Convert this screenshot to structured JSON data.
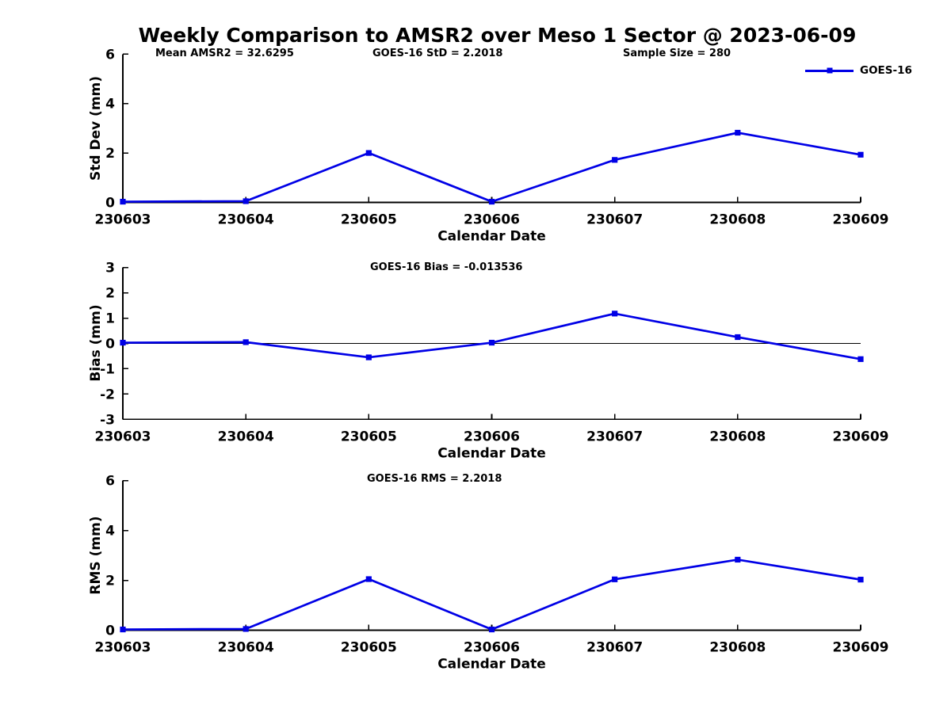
{
  "figure": {
    "title": "Weekly Comparison to AMSR2 over Meso 1 Sector @ 2023-06-09",
    "legend": {
      "label": "GOES-16",
      "position": "top-right"
    },
    "colors": {
      "line": "#0000e6",
      "axis": "#000000",
      "background": "#ffffff"
    }
  },
  "chart_data": [
    {
      "type": "line",
      "name": "std-dev",
      "ylabel": "Std Dev (mm)",
      "xlabel": "Calendar Date",
      "categories": [
        "230603",
        "230604",
        "230605",
        "230606",
        "230607",
        "230608",
        "230609"
      ],
      "yticks": [
        0,
        2,
        4,
        6
      ],
      "ylim": [
        0,
        6
      ],
      "grid": false,
      "zero_line": false,
      "legend": {
        "position": "top-right",
        "entries": [
          "GOES-16"
        ]
      },
      "series": [
        {
          "name": "GOES-16",
          "values": [
            0.03,
            0.05,
            2.0,
            0.03,
            1.72,
            2.82,
            1.93
          ]
        }
      ],
      "annotations": [
        "Mean AMSR2 = 32.6295",
        "GOES-16 StD = 2.2018",
        "Sample Size = 280"
      ]
    },
    {
      "type": "line",
      "name": "bias",
      "ylabel": "Bias (mm)",
      "xlabel": "Calendar Date",
      "categories": [
        "230603",
        "230604",
        "230605",
        "230606",
        "230607",
        "230608",
        "230609"
      ],
      "yticks": [
        -3,
        -2,
        -1,
        0,
        1,
        2,
        3
      ],
      "ylim": [
        -3,
        3
      ],
      "grid": false,
      "zero_line": true,
      "series": [
        {
          "name": "GOES-16",
          "values": [
            0.03,
            0.05,
            -0.55,
            0.03,
            1.18,
            0.25,
            -0.62
          ]
        }
      ],
      "annotations": [
        "GOES-16 Bias  = -0.013536"
      ]
    },
    {
      "type": "line",
      "name": "rms",
      "ylabel": "RMS (mm)",
      "xlabel": "Calendar Date",
      "categories": [
        "230603",
        "230604",
        "230605",
        "230606",
        "230607",
        "230608",
        "230609"
      ],
      "yticks": [
        0,
        2,
        4,
        6
      ],
      "ylim": [
        0,
        6
      ],
      "grid": false,
      "zero_line": false,
      "series": [
        {
          "name": "GOES-16",
          "values": [
            0.03,
            0.05,
            2.05,
            0.03,
            2.04,
            2.83,
            2.03
          ]
        }
      ],
      "annotations": [
        "GOES-16 RMS = 2.2018"
      ]
    }
  ]
}
